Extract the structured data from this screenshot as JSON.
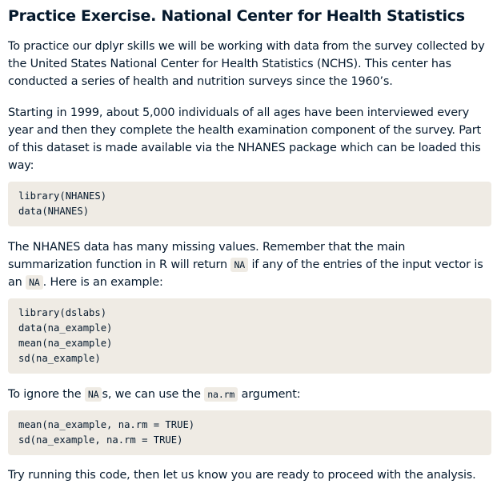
{
  "title": "Practice Exercise. National Center for Health Statistics",
  "paragraphs": {
    "intro": "To practice our dplyr skills we will be working with data from the survey collected by the United States National Center for Health Statistics (NCHS). This center has conducted a series of health and nutrition surveys since the 1960’s.",
    "starting": "Starting in 1999, about 5,000 individuals of all ages have been interviewed every year and then they complete the health examination component of the survey. Part of this dataset is made available via the NHANES package which can be loaded this way:",
    "missing": {
      "part1": "The NHANES data has many missing values. Remember that the main summarization function in R will return ",
      "code1": "NA",
      "part2": " if any of the entries of the input vector is an ",
      "code2": "NA",
      "part3": ". Here is an example:"
    },
    "ignore": {
      "part1": "To ignore the ",
      "code1": "NA",
      "part2": "s, we can use the ",
      "code2": "na.rm",
      "part3": " argument:"
    },
    "closing": "Try running this code, then let us know you are ready to proceed with the analysis."
  },
  "code_blocks": {
    "load_nhanes": [
      "library(NHANES)",
      "data(NHANES)"
    ],
    "na_example": [
      "library(dslabs)",
      "data(na_example)",
      "mean(na_example)",
      "sd(na_example)"
    ],
    "na_rm": [
      "mean(na_example, na.rm = TRUE)",
      "sd(na_example, na.rm = TRUE)"
    ]
  }
}
